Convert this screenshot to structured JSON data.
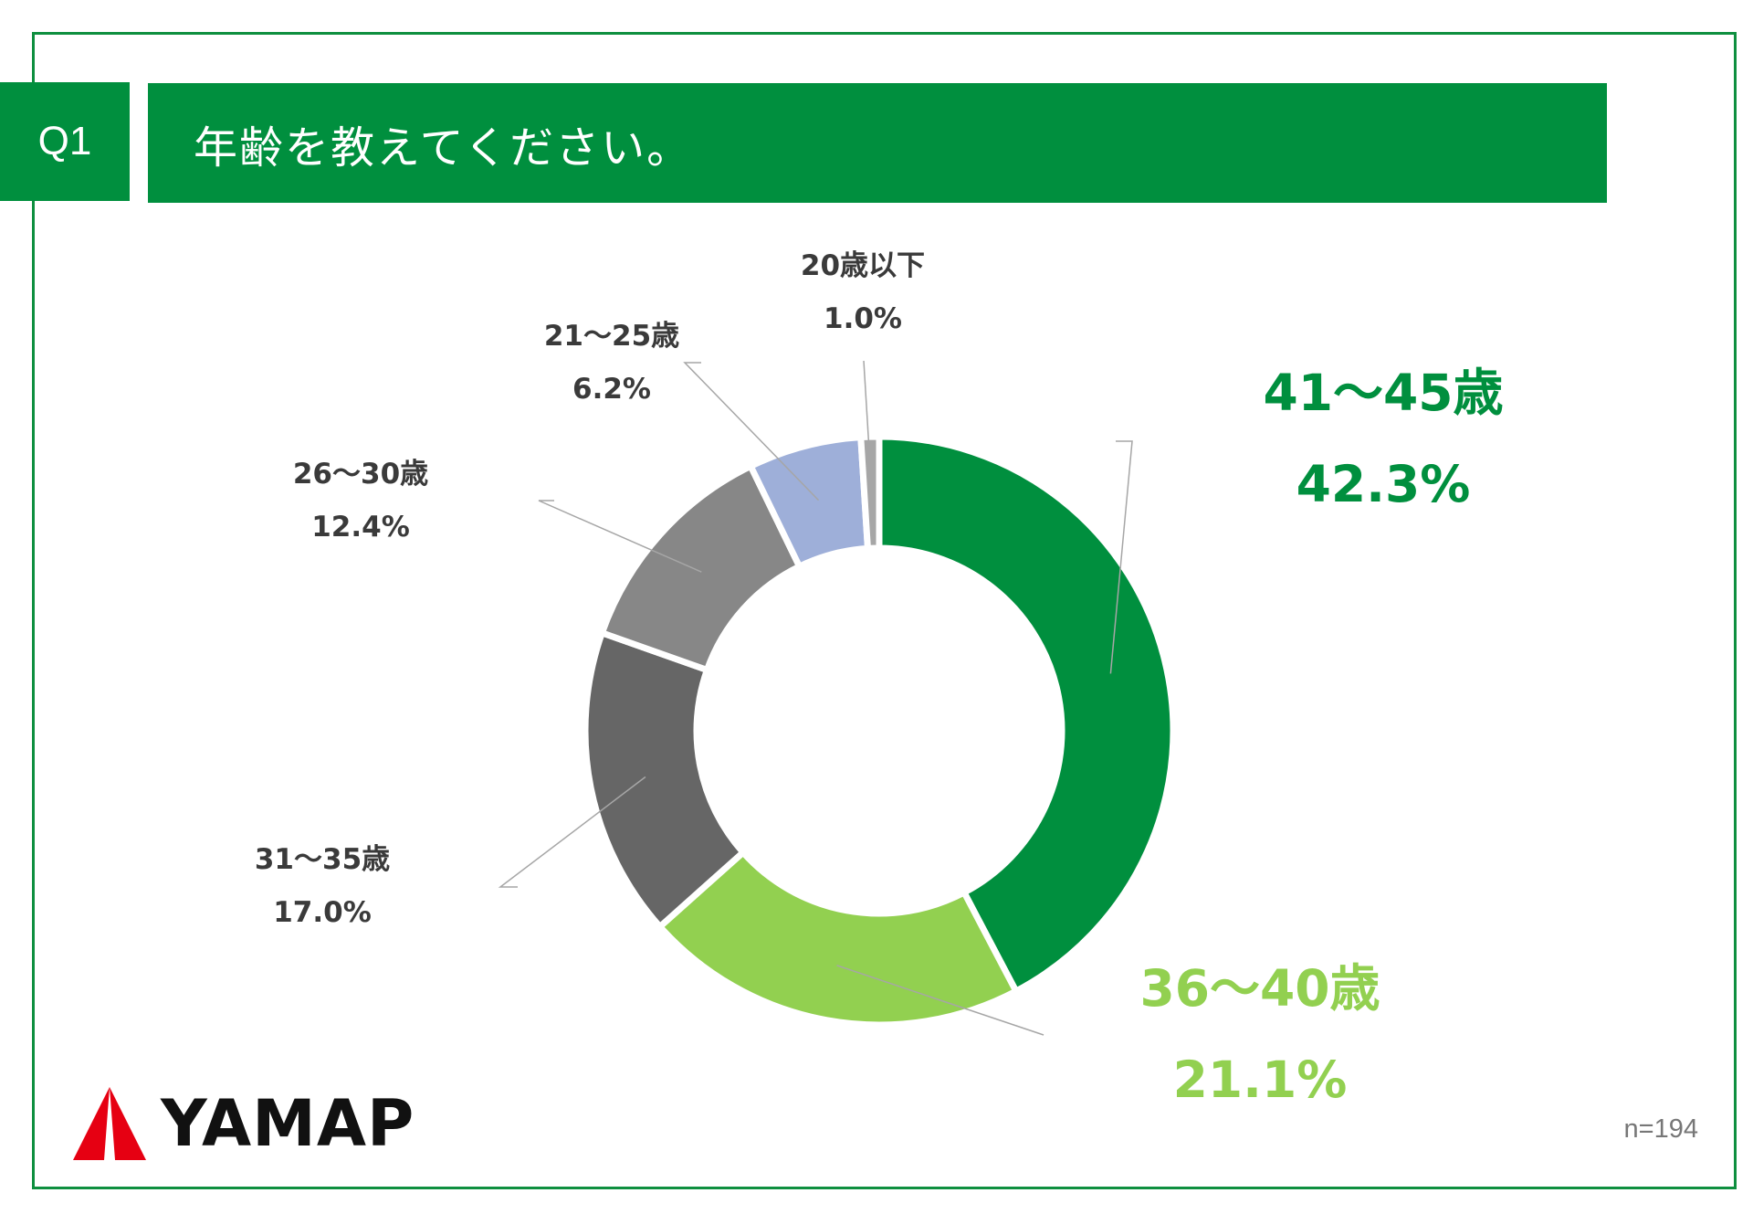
{
  "header": {
    "question_number": "Q1",
    "question_text": "年齢を教えてください。"
  },
  "colors": {
    "brand_green": "#008f3e",
    "frame": "#0e8f3f",
    "light_green": "#92d050",
    "logo_red": "#e60012"
  },
  "chart_data": {
    "type": "donut",
    "title": "年齢を教えてください。",
    "unit": "%",
    "slices": [
      {
        "label": "41〜45歳",
        "value": 42.3,
        "display": "42.3%",
        "color": "#008f3e"
      },
      {
        "label": "36〜40歳",
        "value": 21.1,
        "display": "21.1%",
        "color": "#92d050"
      },
      {
        "label": "31〜35歳",
        "value": 17.0,
        "display": "17.0%",
        "color": "#666666"
      },
      {
        "label": "26〜30歳",
        "value": 12.4,
        "display": "12.4%",
        "color": "#878787"
      },
      {
        "label": "21〜25歳",
        "value": 6.2,
        "display": "6.2%",
        "color": "#9eafd9"
      },
      {
        "label": "20歳以下",
        "value": 1.0,
        "display": "1.0%",
        "color": "#a6a6a6"
      }
    ],
    "sample_size": "n=194"
  },
  "footer": {
    "logo_text": "YAMAP",
    "logo_icon": "mountain-triangle-icon"
  }
}
